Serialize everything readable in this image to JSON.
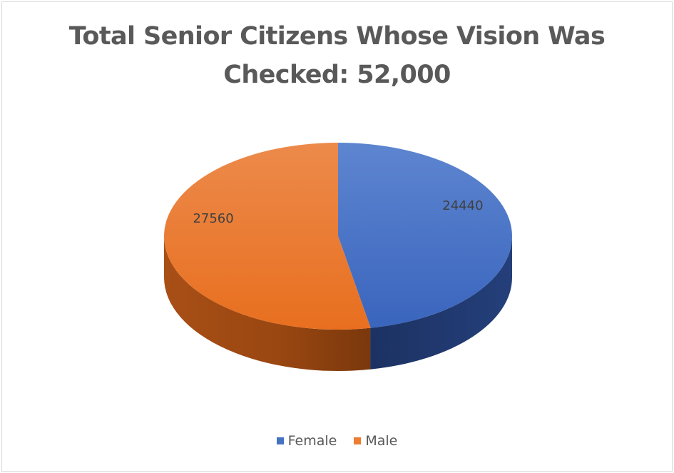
{
  "chart_data": {
    "type": "pie",
    "title_lines": [
      "Total Senior Citizens Whose Vision Was",
      "Checked: 52,000"
    ],
    "categories": [
      "Female",
      "Male"
    ],
    "values": [
      24440,
      27560
    ],
    "data_labels": [
      "24440",
      "27560"
    ],
    "colors": [
      "#4472c4",
      "#ed7d31"
    ],
    "legend_position": "bottom",
    "style": "3d"
  }
}
